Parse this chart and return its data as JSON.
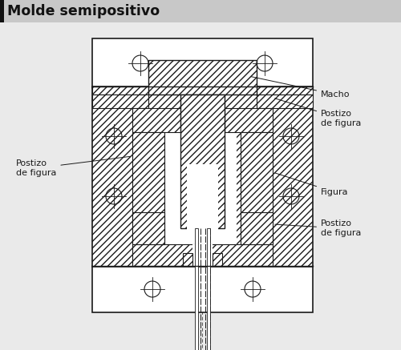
{
  "title": "Molde semipositivo",
  "title_bg": "#d0d0d0",
  "title_color": "#000000",
  "bg_color": "#d8d8d8",
  "body_bg": "#e8e8e8",
  "line_color": "#1a1a1a",
  "white": "#ffffff",
  "hatch_lw": 0.4,
  "labels": {
    "macho": "Macho",
    "postizo_top": "Postizo\nde figura",
    "postizo_left": "Postizo\nde figura",
    "figura": "Figura",
    "postizo_bot": "Postizo\nde figura"
  },
  "figsize": [
    5.0,
    4.37
  ],
  "dpi": 100
}
